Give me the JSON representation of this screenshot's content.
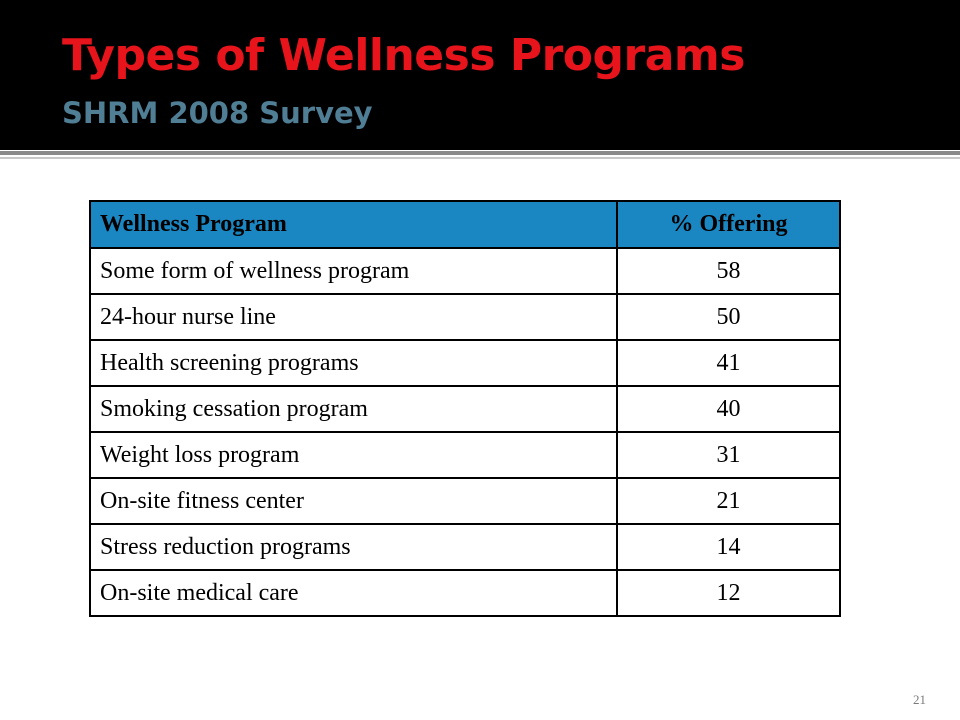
{
  "slide": {
    "title": "Types of Wellness Programs",
    "subtitle": "SHRM 2008 Survey",
    "number": "21"
  },
  "table": {
    "headers": [
      "Wellness Program",
      "% Offering"
    ],
    "rows": [
      [
        "Some form of wellness program",
        "58"
      ],
      [
        "24-hour nurse line",
        "50"
      ],
      [
        "Health screening programs",
        "41"
      ],
      [
        "Smoking cessation program",
        "40"
      ],
      [
        "Weight loss program",
        "31"
      ],
      [
        "On-site fitness center",
        "21"
      ],
      [
        "Stress reduction programs",
        "14"
      ],
      [
        "On-site medical care",
        "12"
      ]
    ]
  },
  "colors": {
    "header_background": "#000000",
    "title": "#e8141c",
    "subtitle": "#4f7e95",
    "table_header": "#1b87c2"
  }
}
